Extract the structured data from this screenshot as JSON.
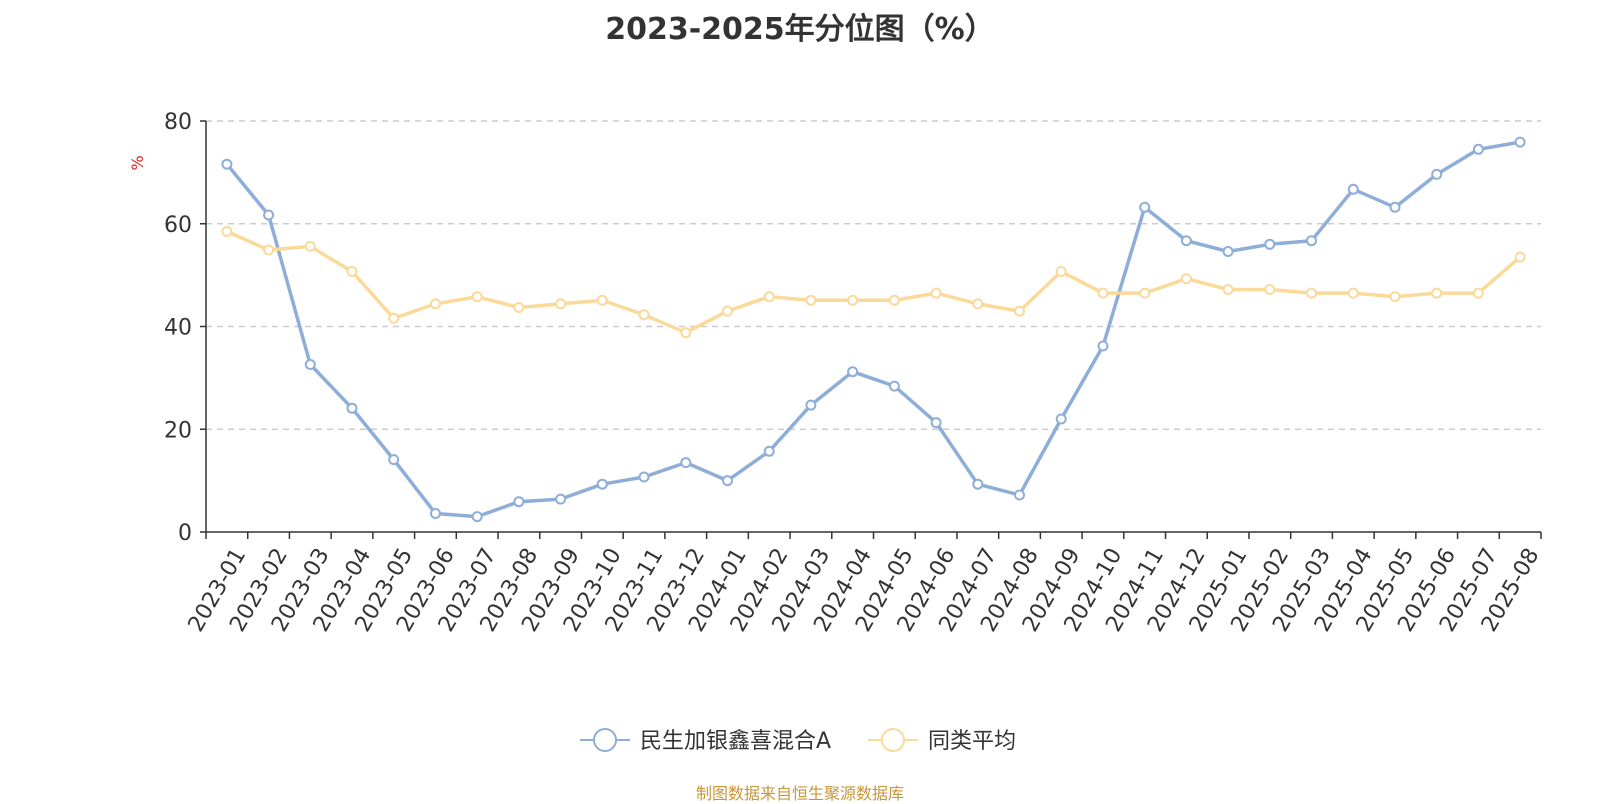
{
  "chart_data": {
    "type": "line",
    "title": "2023-2025年分位图（%）",
    "ylabel": "%",
    "ylim": [
      0,
      80
    ],
    "yticks": [
      0,
      20,
      40,
      60,
      80
    ],
    "grid": true,
    "legend_position": "bottom",
    "categories": [
      "2023-01",
      "2023-02",
      "2023-03",
      "2023-04",
      "2023-05",
      "2023-06",
      "2023-07",
      "2023-08",
      "2023-09",
      "2023-10",
      "2023-11",
      "2023-12",
      "2024-01",
      "2024-02",
      "2024-03",
      "2024-04",
      "2024-05",
      "2024-06",
      "2024-07",
      "2024-08",
      "2024-09",
      "2024-10",
      "2024-11",
      "2024-12",
      "2025-01",
      "2025-02",
      "2025-03",
      "2025-04",
      "2025-05",
      "2025-06",
      "2025-07",
      "2025-08"
    ],
    "series": [
      {
        "name": "民生加银鑫喜混合A",
        "color": "#8eaed9",
        "values": [
          71.6,
          61.7,
          32.6,
          24.1,
          14.1,
          3.6,
          3.0,
          5.9,
          6.4,
          9.3,
          10.7,
          13.5,
          10.0,
          15.7,
          24.7,
          31.2,
          28.4,
          21.3,
          9.3,
          7.2,
          22.0,
          36.2,
          63.2,
          56.7,
          54.6,
          56.0,
          56.7,
          66.7,
          63.2,
          69.6,
          74.5,
          75.9
        ]
      },
      {
        "name": "同类平均",
        "color": "#fad999",
        "values": [
          58.5,
          54.9,
          55.6,
          50.7,
          41.6,
          44.4,
          45.8,
          43.7,
          44.4,
          45.1,
          42.3,
          38.8,
          43.0,
          45.8,
          45.1,
          45.1,
          45.1,
          46.5,
          44.4,
          43.0,
          50.7,
          46.5,
          46.5,
          49.3,
          47.2,
          47.2,
          46.5,
          46.5,
          45.8,
          46.5,
          46.5,
          53.5
        ]
      }
    ]
  },
  "source_note": "制图数据来自恒生聚源数据库"
}
